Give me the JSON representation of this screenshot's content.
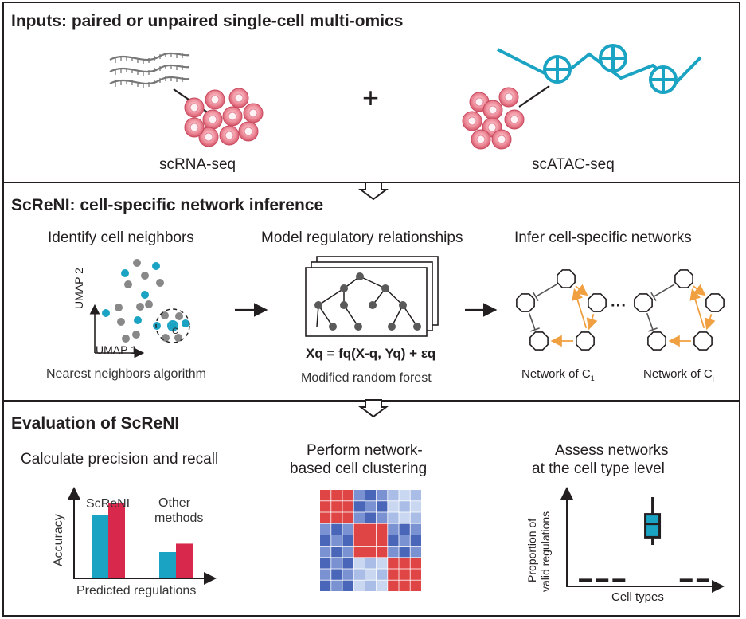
{
  "inputs": {
    "heading": "Inputs: paired or unpaired single-cell multi-omics",
    "plus": "+",
    "rna_label": "scRNA-seq",
    "atac_label": "scATAC-seq"
  },
  "screni": {
    "heading": "ScReNI: cell-specific network inference",
    "step1": {
      "title": "Identify cell neighbors",
      "caption": "Nearest neighbors algorithm",
      "axis_y": "UMAP 2",
      "axis_x": "UMAP 1",
      "cell_label": "C"
    },
    "step2": {
      "title": "Model regulatory relationships",
      "formula": "Xq = fq(X-q, Yq) + εq",
      "caption": "Modified random forest"
    },
    "step3": {
      "title": "Infer cell-specific networks",
      "ellipsis": "···",
      "net1_base": "Network of C",
      "net1_sub": "1",
      "net2_base": "Network of C",
      "net2_sub": "j"
    }
  },
  "evaluation": {
    "heading": "Evaluation of ScReNI",
    "precision": {
      "title": "Calculate precision and recall",
      "ylabel": "Accuracy",
      "xlabel": "Predicted regulations",
      "group1": "ScReNI",
      "group2_line1": "Other",
      "group2_line2": "methods"
    },
    "clustering": {
      "title_line1": "Perform network-",
      "title_line2": "based cell clustering"
    },
    "assess": {
      "title_line1": "Assess networks",
      "title_line2": "at the cell type level",
      "ylabel_line1": "Proportion of",
      "ylabel_line2": "valid regulations",
      "xlabel": "Cell types"
    }
  },
  "colors": {
    "cyan": "#1aa3c2",
    "red": "#d8284c",
    "gray": "#888888",
    "orange": "#f0a040",
    "pink": "#e87585",
    "heat_red": "#e04545",
    "heat_blue": "#5570c0",
    "heat_light": "#c8d8ee"
  },
  "chart_data": [
    {
      "type": "bar",
      "title": "Calculate precision and recall",
      "xlabel": "Predicted regulations",
      "ylabel": "Accuracy",
      "categories": [
        "ScReNI",
        "Other methods"
      ],
      "series": [
        {
          "color": "#1aa3c2",
          "values": [
            0.6,
            0.25
          ]
        },
        {
          "color": "#d8284c",
          "values": [
            0.72,
            0.33
          ]
        }
      ],
      "ylim": [
        0,
        1
      ]
    },
    {
      "type": "box",
      "title": "Assess networks at the cell type level",
      "xlabel": "Cell types",
      "ylabel": "Proportion of valid regulations",
      "ylim": [
        0,
        1
      ],
      "box": {
        "position": 5,
        "q1": 0.48,
        "median": 0.62,
        "q3": 0.72,
        "whisker_low": 0.4,
        "whisker_high": 0.9
      },
      "baseline_positions": [
        1,
        2,
        3,
        7,
        8
      ],
      "baseline_value": 0.03
    }
  ]
}
